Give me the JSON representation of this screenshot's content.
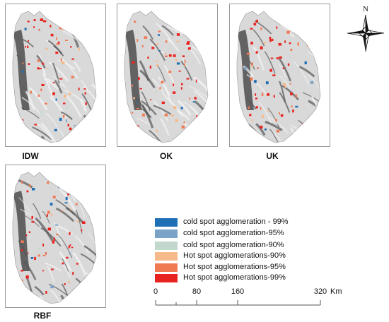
{
  "maps": [
    {
      "label": "IDW"
    },
    {
      "label": "OK"
    },
    {
      "label": "UK"
    },
    {
      "label": "RBF"
    }
  ],
  "legend": {
    "items": [
      {
        "label": "cold spot agglomeration - 99%",
        "color": "#1f6fb5"
      },
      {
        "label": "cold spot agglomeration-95%",
        "color": "#7ba3c8"
      },
      {
        "label": "cold spot agglomeration-90%",
        "color": "#c3d8cc"
      },
      {
        "label": "Hot spot agglomerations-90%",
        "color": "#f7b98a"
      },
      {
        "label": "Hot spot agglomerations-95%",
        "color": "#f07a52"
      },
      {
        "label": "Hot spot agglomerations-99%",
        "color": "#e8231f"
      }
    ]
  },
  "scale_bar": {
    "ticks": [
      "0",
      "80",
      "160",
      "320"
    ],
    "unit": "Km"
  },
  "north_arrow": {
    "label": "N",
    "icon": "compass-rose-icon"
  }
}
